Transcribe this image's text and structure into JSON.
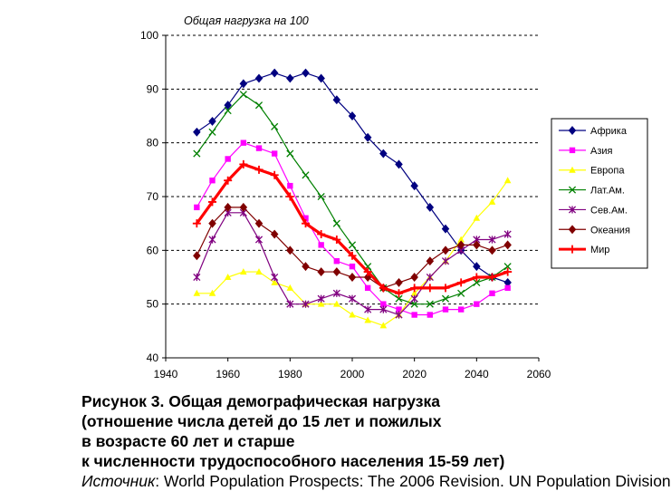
{
  "chart_data": {
    "type": "line",
    "title": "Общая нагрузка на 100",
    "xlabel": "",
    "ylabel": "",
    "xlim": [
      1940,
      2060
    ],
    "ylim": [
      40,
      100
    ],
    "x_ticks": [
      1940,
      1960,
      1980,
      2000,
      2020,
      2040,
      2060
    ],
    "y_ticks": [
      40,
      50,
      60,
      70,
      80,
      90,
      100
    ],
    "grid": "horizontal-dashed",
    "legend_position": "right",
    "x": [
      1950,
      1955,
      1960,
      1965,
      1970,
      1975,
      1980,
      1985,
      1990,
      1995,
      2000,
      2005,
      2010,
      2015,
      2020,
      2025,
      2030,
      2035,
      2040,
      2045,
      2050
    ],
    "series": [
      {
        "name": "Африка",
        "color": "#000080",
        "marker": "diamond",
        "values": [
          82,
          84,
          87,
          91,
          92,
          93,
          92,
          93,
          92,
          88,
          85,
          81,
          78,
          76,
          72,
          68,
          64,
          60,
          57,
          55,
          54
        ]
      },
      {
        "name": "Азия",
        "color": "#FF00FF",
        "marker": "square",
        "values": [
          68,
          73,
          77,
          80,
          79,
          78,
          72,
          66,
          61,
          58,
          57,
          53,
          50,
          49,
          48,
          48,
          49,
          49,
          50,
          52,
          53
        ]
      },
      {
        "name": "Европа",
        "color": "#FFFF00",
        "marker": "triangle",
        "values": [
          52,
          52,
          55,
          56,
          56,
          54,
          53,
          50,
          50,
          50,
          48,
          47,
          46,
          48,
          52,
          55,
          58,
          62,
          66,
          69,
          73
        ]
      },
      {
        "name": "Лат.Ам.",
        "color": "#008000",
        "marker": "x",
        "values": [
          78,
          82,
          86,
          89,
          87,
          83,
          78,
          74,
          70,
          65,
          61,
          57,
          53,
          51,
          50,
          50,
          51,
          52,
          54,
          55,
          57
        ]
      },
      {
        "name": "Сев.Ам.",
        "color": "#800080",
        "marker": "asterisk",
        "values": [
          55,
          62,
          67,
          67,
          62,
          55,
          50,
          50,
          51,
          52,
          51,
          49,
          49,
          48,
          51,
          55,
          58,
          60,
          62,
          62,
          63
        ]
      },
      {
        "name": "Океания",
        "color": "#800000",
        "marker": "diamond",
        "values": [
          59,
          65,
          68,
          68,
          65,
          63,
          60,
          57,
          56,
          56,
          55,
          55,
          53,
          54,
          55,
          58,
          60,
          61,
          61,
          60,
          61
        ]
      },
      {
        "name": "Мир",
        "color": "#FF0000",
        "marker": "plus",
        "thick": true,
        "values": [
          65,
          69,
          73,
          76,
          75,
          74,
          70,
          65,
          63,
          62,
          59,
          56,
          53,
          52,
          53,
          53,
          53,
          54,
          55,
          55,
          56
        ]
      }
    ]
  },
  "caption": {
    "line1": "Рисунок 3. Общая демографическая нагрузка",
    "line2": "(отношение числа детей до 15 лет и пожилых",
    "line3": "в возрасте 60 лет и старше",
    "line4": "к численности трудоспособного населения 15-59 лет)",
    "source_label": "Источник",
    "source_text": ": World Population Prospects: The 2006 Revision. UN Population Division"
  }
}
